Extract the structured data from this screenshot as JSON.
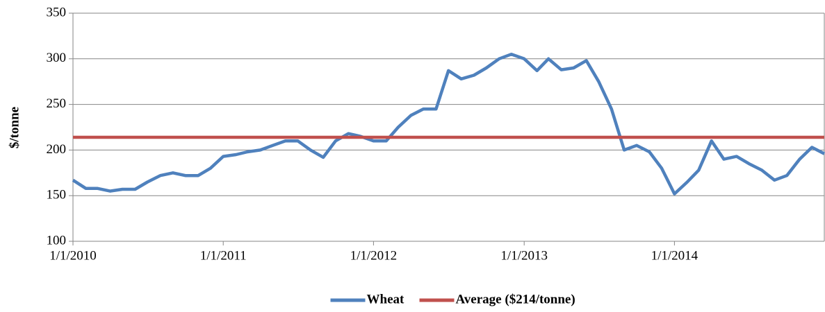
{
  "chart_data": {
    "type": "line",
    "y_label": "$/tonne",
    "x": [
      "2010-01-01",
      "2010-02-01",
      "2010-03-01",
      "2010-04-01",
      "2010-05-01",
      "2010-06-01",
      "2010-07-01",
      "2010-08-01",
      "2010-09-01",
      "2010-10-01",
      "2010-11-01",
      "2010-12-01",
      "2011-01-01",
      "2011-02-01",
      "2011-03-01",
      "2011-04-01",
      "2011-05-01",
      "2011-06-01",
      "2011-07-01",
      "2011-08-01",
      "2011-09-01",
      "2011-10-01",
      "2011-11-01",
      "2011-12-01",
      "2012-01-01",
      "2012-02-01",
      "2012-03-01",
      "2012-04-01",
      "2012-05-01",
      "2012-06-01",
      "2012-07-01",
      "2012-08-01",
      "2012-09-01",
      "2012-10-01",
      "2012-11-01",
      "2012-12-01",
      "2013-01-01",
      "2013-02-01",
      "2013-03-01",
      "2013-04-01",
      "2013-05-01",
      "2013-06-01",
      "2013-07-01",
      "2013-08-01",
      "2013-09-01",
      "2013-10-01",
      "2013-11-01",
      "2013-12-01",
      "2014-01-01",
      "2014-02-01",
      "2014-03-01",
      "2014-04-01",
      "2014-05-01",
      "2014-06-01",
      "2014-07-01",
      "2014-08-01",
      "2014-09-01",
      "2014-10-01",
      "2014-11-01",
      "2014-12-01",
      "2014-12-31"
    ],
    "series": [
      {
        "name": "Wheat",
        "color": "#4f81bd",
        "values": [
          167,
          158,
          158,
          155,
          157,
          157,
          165,
          172,
          175,
          172,
          172,
          180,
          193,
          195,
          198,
          200,
          205,
          210,
          210,
          200,
          192,
          210,
          218,
          215,
          210,
          210,
          225,
          238,
          245,
          245,
          287,
          278,
          282,
          290,
          300,
          305,
          300,
          287,
          300,
          288,
          290,
          298,
          275,
          245,
          200,
          205,
          198,
          180,
          152,
          165,
          178,
          210,
          190,
          193,
          185,
          178,
          167,
          172,
          190,
          203,
          196
        ]
      },
      {
        "name": "Average ($214/tonne)",
        "color": "#c0504d",
        "values": [
          214,
          214,
          214,
          214,
          214,
          214,
          214,
          214,
          214,
          214,
          214,
          214,
          214,
          214,
          214,
          214,
          214,
          214,
          214,
          214,
          214,
          214,
          214,
          214,
          214,
          214,
          214,
          214,
          214,
          214,
          214,
          214,
          214,
          214,
          214,
          214,
          214,
          214,
          214,
          214,
          214,
          214,
          214,
          214,
          214,
          214,
          214,
          214,
          214,
          214,
          214,
          214,
          214,
          214,
          214,
          214,
          214,
          214,
          214,
          214,
          214
        ]
      }
    ],
    "xlim": [
      "2010-01-01",
      "2014-12-31"
    ],
    "xticks": [
      {
        "value": "2010-01-01",
        "label": "1/1/2010"
      },
      {
        "value": "2011-01-01",
        "label": "1/1/2011"
      },
      {
        "value": "2012-01-01",
        "label": "1/1/2012"
      },
      {
        "value": "2013-01-01",
        "label": "1/1/2013"
      },
      {
        "value": "2014-01-01",
        "label": "1/1/2014"
      }
    ],
    "ylim": [
      100,
      350
    ],
    "yticks": [
      100,
      150,
      200,
      250,
      300,
      350
    ],
    "grid": true,
    "legend": "bottom"
  }
}
